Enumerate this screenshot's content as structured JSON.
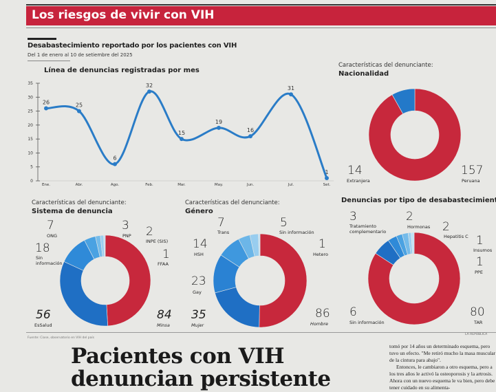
{
  "banner": {
    "title": "Los riesgos de vivir con VIH",
    "color": "#c7233c"
  },
  "header": {
    "title": "Desabastecimiento reportado por los pacientes con VIH",
    "subtitle": "Del 1 de enero al 10 de setiembre del 2025"
  },
  "chart_data": [
    {
      "type": "line",
      "title": "Línea de denuncias registradas por mes",
      "categories": [
        "Ene.",
        "Abr.",
        "Ago.",
        "Feb.",
        "Mar.",
        "May.",
        "Jun.",
        "Jul.",
        "Set."
      ],
      "values": [
        26,
        25,
        6,
        32,
        15,
        19,
        16,
        31,
        1
      ],
      "yticks": [
        0,
        5,
        10,
        15,
        20,
        25,
        30,
        35
      ],
      "ylim": [
        0,
        35
      ],
      "grid": false,
      "color": "#2a7cc7"
    },
    {
      "type": "pie",
      "title_prefix": "Características del denunciante:",
      "title": "Nacionalidad",
      "slices": [
        {
          "label": "Peruana",
          "value": 157,
          "color": "#c7283c"
        },
        {
          "label": "Extranjera",
          "value": 14,
          "color": "#2379c9"
        }
      ]
    },
    {
      "type": "pie",
      "title_prefix": "Características del denunciante:",
      "title": "Sistema de denuncia",
      "slices": [
        {
          "label": "Minsa",
          "value": 84,
          "color": "#c7283c"
        },
        {
          "label": "EsSalud",
          "value": 56,
          "color": "#1f6fc4"
        },
        {
          "label": "Sin información",
          "value": 18,
          "color": "#2f8ad8"
        },
        {
          "label": "ONG",
          "value": 7,
          "color": "#4aa2e2"
        },
        {
          "label": "PNP",
          "value": 3,
          "color": "#74bbea"
        },
        {
          "label": "INPE (SIS)",
          "value": 2,
          "color": "#9bcff0"
        },
        {
          "label": "FFAA",
          "value": 1,
          "color": "#c0e2f6"
        }
      ]
    },
    {
      "type": "pie",
      "title_prefix": "Características del denunciante:",
      "title": "Género",
      "slices": [
        {
          "label": "Hombre",
          "value": 86,
          "color": "#c7283c"
        },
        {
          "label": "Mujer",
          "value": 35,
          "color": "#1f6fc4"
        },
        {
          "label": "Gay",
          "value": 23,
          "color": "#2a82d3"
        },
        {
          "label": "HSH",
          "value": 14,
          "color": "#3f98de"
        },
        {
          "label": "Trans",
          "value": 7,
          "color": "#6cb6e8"
        },
        {
          "label": "Sin información",
          "value": 5,
          "color": "#98cdef"
        },
        {
          "label": "Hetero",
          "value": 1,
          "color": "#c0e2f6"
        }
      ]
    },
    {
      "type": "pie",
      "title": "Denuncias por tipo de desabastecimiento",
      "slices": [
        {
          "label": "TAR",
          "value": 80,
          "color": "#c7283c"
        },
        {
          "label": "Sin información",
          "value": 6,
          "color": "#1f6fc4"
        },
        {
          "label": "Tratamiento complementario",
          "value": 3,
          "color": "#2f8ad8"
        },
        {
          "label": "Hormonas",
          "value": 2,
          "color": "#4aa2e2"
        },
        {
          "label": "Hepatitis C",
          "value": 2,
          "color": "#74bbea"
        },
        {
          "label": "Insumos",
          "value": 1,
          "color": "#9bcff0"
        },
        {
          "label": "PPE",
          "value": 1,
          "color": "#c0e2f6"
        }
      ]
    }
  ],
  "footer": {
    "source": "Fuente: Ciase, observatorio en VIH del país",
    "credit": "LA REPÚBLICA"
  },
  "article": {
    "headline_1": "Pacientes con VIH",
    "headline_2": "denuncian persistente",
    "p1": "tomó por 14 años un determinado esquema, pero tuvo un efecto. \"Me retiró mucho la masa muscular de la cintura para abajo\".",
    "p2": "Entonces, le cambiaron a otro esquema, pero a los tres años le activó la osteoporosis y la artrosis. Ahora con un nuevo esquema le va bien, pero debe tener cuidado en su alimenta-"
  }
}
